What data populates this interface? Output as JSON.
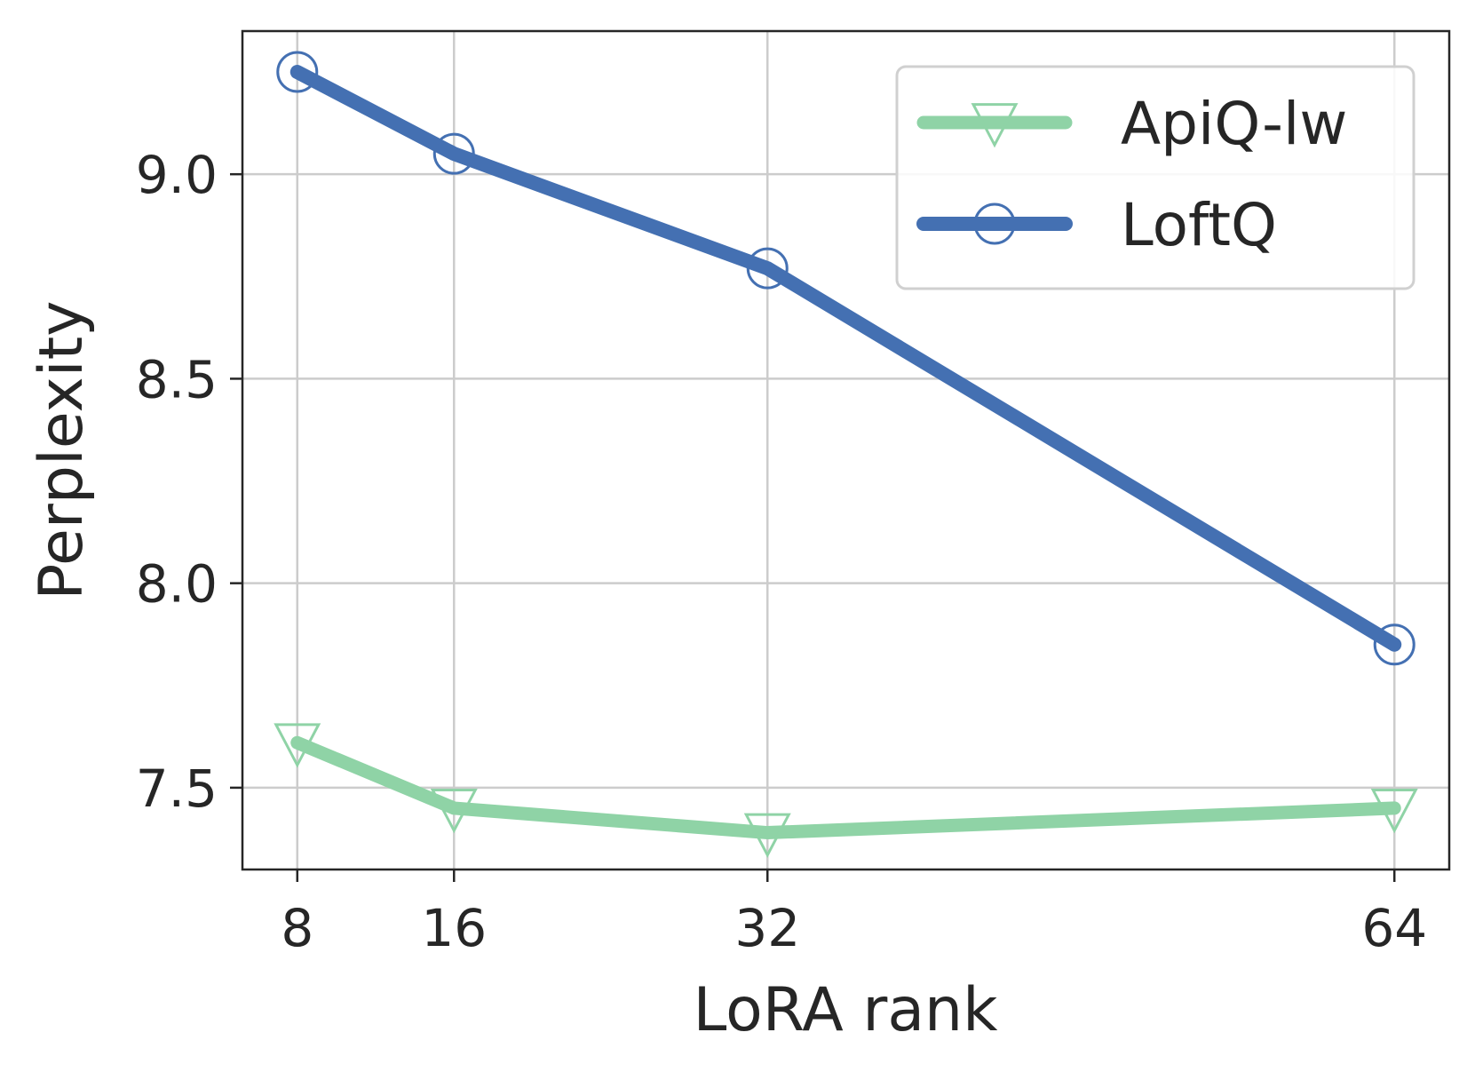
{
  "chart_data": {
    "type": "line",
    "title": "",
    "xlabel": "LoRA rank",
    "ylabel": "Perplexity",
    "x": [
      8,
      16,
      32,
      64
    ],
    "x_tick_labels": [
      "8",
      "16",
      "32",
      "64"
    ],
    "xlim": [
      5.2,
      66.8
    ],
    "ylim": [
      7.3,
      9.35
    ],
    "y_ticks": [
      7.5,
      8.0,
      8.5,
      9.0
    ],
    "y_tick_labels": [
      "7.5",
      "8.0",
      "8.5",
      "9.0"
    ],
    "grid": true,
    "legend_position": "top-right",
    "series": [
      {
        "name": "ApiQ-lw",
        "values": [
          7.61,
          7.45,
          7.39,
          7.45
        ],
        "color": "#8fd3a6",
        "marker": "triangle-down-open"
      },
      {
        "name": "LoftQ",
        "values": [
          9.25,
          9.05,
          8.77,
          7.85
        ],
        "color": "#4470b2",
        "marker": "circle-open"
      }
    ]
  }
}
